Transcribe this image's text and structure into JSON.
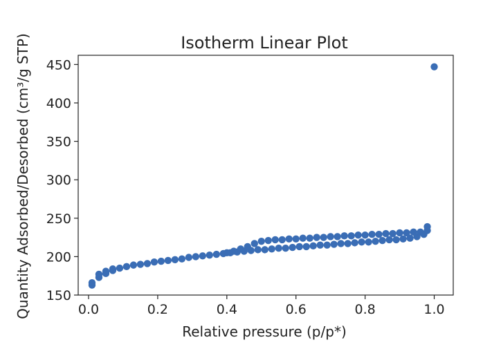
{
  "chart_data": {
    "type": "scatter",
    "title": "Isotherm Linear Plot",
    "xlabel": "Relative pressure (p/p*)",
    "ylabel": "Quantity Adsorbed/Desorbed (cm³/g STP)",
    "xlim": [
      -0.03,
      1.055
    ],
    "ylim": [
      150,
      462
    ],
    "xticks": [
      0.0,
      0.2,
      0.4,
      0.6,
      0.8,
      1.0
    ],
    "xtick_labels": [
      "0.0",
      "0.2",
      "0.4",
      "0.6",
      "0.8",
      "1.0"
    ],
    "yticks": [
      150,
      200,
      250,
      300,
      350,
      400,
      450
    ],
    "ytick_labels": [
      "150",
      "200",
      "250",
      "300",
      "350",
      "400",
      "450"
    ],
    "grid": false,
    "marker_color": "#3a6db5",
    "series": [
      {
        "points": [
          [
            0.01,
            163
          ],
          [
            0.01,
            166
          ],
          [
            0.03,
            173
          ],
          [
            0.03,
            177
          ],
          [
            0.05,
            178
          ],
          [
            0.05,
            181
          ],
          [
            0.07,
            182
          ],
          [
            0.07,
            184
          ],
          [
            0.09,
            185
          ],
          [
            0.11,
            187
          ],
          [
            0.13,
            189
          ],
          [
            0.15,
            190
          ],
          [
            0.17,
            191
          ],
          [
            0.19,
            193
          ],
          [
            0.21,
            194
          ],
          [
            0.23,
            195
          ],
          [
            0.25,
            196
          ],
          [
            0.27,
            197
          ],
          [
            0.29,
            199
          ],
          [
            0.31,
            200
          ],
          [
            0.33,
            201
          ],
          [
            0.35,
            202
          ],
          [
            0.37,
            203
          ],
          [
            0.39,
            204
          ],
          [
            0.41,
            205
          ],
          [
            0.43,
            206
          ],
          [
            0.45,
            207
          ],
          [
            0.47,
            208
          ],
          [
            0.49,
            209
          ],
          [
            0.51,
            209
          ],
          [
            0.53,
            210
          ],
          [
            0.55,
            211
          ],
          [
            0.57,
            211
          ],
          [
            0.59,
            212
          ],
          [
            0.61,
            213
          ],
          [
            0.63,
            213
          ],
          [
            0.65,
            214
          ],
          [
            0.67,
            215
          ],
          [
            0.69,
            215
          ],
          [
            0.71,
            216
          ],
          [
            0.73,
            217
          ],
          [
            0.75,
            217
          ],
          [
            0.77,
            218
          ],
          [
            0.79,
            219
          ],
          [
            0.81,
            219
          ],
          [
            0.83,
            220
          ],
          [
            0.85,
            221
          ],
          [
            0.87,
            222
          ],
          [
            0.89,
            222
          ],
          [
            0.91,
            223
          ],
          [
            0.93,
            224
          ],
          [
            0.95,
            226
          ],
          [
            0.97,
            229
          ],
          [
            0.98,
            234
          ],
          [
            0.98,
            239
          ],
          [
            0.96,
            232
          ],
          [
            0.94,
            232
          ],
          [
            0.92,
            231
          ],
          [
            0.9,
            231
          ],
          [
            0.88,
            230
          ],
          [
            0.86,
            230
          ],
          [
            0.84,
            229
          ],
          [
            0.82,
            229
          ],
          [
            0.8,
            228
          ],
          [
            0.78,
            228
          ],
          [
            0.76,
            227
          ],
          [
            0.74,
            227
          ],
          [
            0.72,
            226
          ],
          [
            0.7,
            226
          ],
          [
            0.68,
            225
          ],
          [
            0.66,
            225
          ],
          [
            0.64,
            224
          ],
          [
            0.62,
            224
          ],
          [
            0.6,
            223
          ],
          [
            0.58,
            223
          ],
          [
            0.56,
            222
          ],
          [
            0.54,
            222
          ],
          [
            0.52,
            221
          ],
          [
            0.5,
            220
          ],
          [
            0.48,
            217
          ],
          [
            0.46,
            213
          ],
          [
            0.44,
            210
          ],
          [
            0.42,
            207
          ],
          [
            0.4,
            205
          ],
          [
            1.0,
            447
          ]
        ]
      }
    ]
  }
}
